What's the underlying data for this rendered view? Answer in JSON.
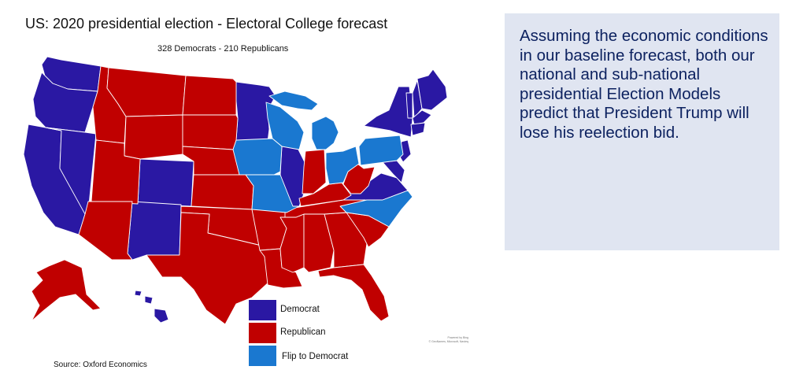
{
  "title": "US: 2020 presidential election - Electoral College forecast",
  "subtitle": "328 Democrats - 210 Republicans",
  "colors": {
    "democrat": "#2a18a3",
    "republican": "#c00000",
    "flip_to_democrat": "#1a78d0",
    "state_border": "#ffffff",
    "textbox_bg": "#e0e5f1",
    "textbox_text": "#0d2260"
  },
  "legend": [
    {
      "label": "Democrat",
      "color": "#2a18a3"
    },
    {
      "label": "Republican",
      "color": "#c00000"
    },
    {
      "label": "Flip to Democrat",
      "color": "#1a78d0"
    }
  ],
  "attribution": {
    "line1": "Powered by Bing",
    "line2": "© GeoNames, Microsoft, Navteq"
  },
  "source": "Source: Oxford Economics",
  "textbox": {
    "text": "Assuming the economic conditions in our baseline forecast, both our national and sub-national presidential Election Models predict that President Trump will lose his reelection bid."
  }
}
